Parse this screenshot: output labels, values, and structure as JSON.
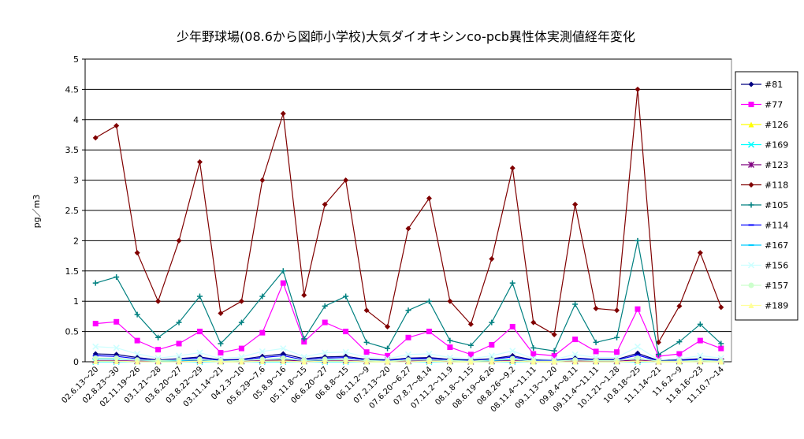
{
  "chart_data": {
    "type": "line",
    "title": "少年野球場(08.6から図師小学校)大気ダイオキシンco-pcb異性体実測値経年変化",
    "y_label": "pg／m3",
    "categories": [
      "02.6.13～20",
      "02.8.23～30",
      "02.11.19～26",
      "03.1.21～28",
      "03.6.20～27",
      "03.8.22～29",
      "03.11.14～21",
      "04.2.3～10",
      "05.6.29～7.6",
      "05.8.9～16",
      "05.11.8～15",
      "06.6.20～27",
      "06.8.8～15",
      "06.11.2～9",
      "07.2.13～20",
      "07.6.20～6.27",
      "07.8.7～8.14",
      "07.11.2～11.9",
      "08.1.8～1.15",
      "08.6.19～6.26",
      "08.8.26～9.2",
      "08.11.4～11.11",
      "09.1.13～1.20",
      "09.8.4～8.11",
      "09.11.4～11.11",
      "10.1.21～1.28",
      "10.8.18～25",
      "11.1.14～21",
      "11.6.2～9",
      "11.8.16～23",
      "11.10.7～14"
    ],
    "ylim": [
      0,
      5
    ],
    "yticks": [
      0,
      0.5,
      1,
      1.5,
      2,
      2.5,
      3,
      3.5,
      4,
      4.5,
      5
    ],
    "grid": true,
    "series": [
      {
        "name": "#81",
        "color": "#000080",
        "marker": "diamond",
        "values": [
          0.13,
          0.12,
          0.07,
          0.03,
          0.05,
          0.08,
          0.03,
          0.04,
          0.09,
          0.13,
          0.05,
          0.08,
          0.09,
          0.04,
          0.03,
          0.06,
          0.07,
          0.04,
          0.03,
          0.05,
          0.1,
          0.03,
          0.02,
          0.06,
          0.04,
          0.04,
          0.14,
          0.02,
          0.03,
          0.05,
          0.03
        ]
      },
      {
        "name": "#77",
        "color": "#ff00ff",
        "marker": "square",
        "values": [
          0.63,
          0.66,
          0.35,
          0.2,
          0.3,
          0.5,
          0.15,
          0.22,
          0.48,
          1.3,
          0.33,
          0.65,
          0.5,
          0.16,
          0.1,
          0.4,
          0.5,
          0.24,
          0.12,
          0.28,
          0.58,
          0.13,
          0.1,
          0.37,
          0.17,
          0.16,
          0.87,
          0.09,
          0.13,
          0.35,
          0.22
        ]
      },
      {
        "name": "#126",
        "color": "#ffff00",
        "marker": "triangle",
        "values": [
          0.01,
          0.01,
          0.01,
          0.0,
          0.01,
          0.01,
          0.0,
          0.0,
          0.01,
          0.02,
          0.0,
          0.01,
          0.01,
          0.0,
          0.0,
          0.01,
          0.01,
          0.0,
          0.0,
          0.01,
          0.01,
          0.0,
          0.0,
          0.01,
          0.0,
          0.0,
          0.02,
          0.0,
          0.0,
          0.01,
          0.0
        ]
      },
      {
        "name": "#169",
        "color": "#00ffff",
        "marker": "x",
        "values": [
          0.0,
          0.0,
          0.0,
          0.0,
          0.0,
          0.0,
          0.0,
          0.0,
          0.0,
          0.0,
          0.0,
          0.0,
          0.0,
          0.0,
          0.0,
          0.0,
          0.0,
          0.0,
          0.0,
          0.0,
          0.0,
          0.0,
          0.0,
          0.0,
          0.0,
          0.0,
          0.0,
          0.0,
          0.0,
          0.0,
          0.0
        ]
      },
      {
        "name": "#123",
        "color": "#800080",
        "marker": "star",
        "values": [
          0.02,
          0.02,
          0.01,
          0.01,
          0.01,
          0.02,
          0.01,
          0.01,
          0.02,
          0.03,
          0.01,
          0.02,
          0.02,
          0.01,
          0.0,
          0.01,
          0.02,
          0.01,
          0.0,
          0.01,
          0.02,
          0.01,
          0.0,
          0.01,
          0.01,
          0.01,
          0.03,
          0.0,
          0.01,
          0.01,
          0.01
        ]
      },
      {
        "name": "#118",
        "color": "#800000",
        "marker": "diamond",
        "values": [
          3.7,
          3.9,
          1.8,
          1.0,
          2.0,
          3.3,
          0.8,
          1.0,
          3.0,
          4.1,
          1.1,
          2.6,
          3.0,
          0.85,
          0.58,
          2.2,
          2.7,
          1.0,
          0.62,
          1.7,
          3.2,
          0.65,
          0.45,
          2.6,
          0.88,
          0.85,
          4.5,
          0.32,
          0.92,
          1.8,
          0.9
        ]
      },
      {
        "name": "#105",
        "color": "#008080",
        "marker": "plus",
        "values": [
          1.3,
          1.4,
          0.78,
          0.4,
          0.65,
          1.08,
          0.3,
          0.65,
          1.08,
          1.5,
          0.38,
          0.92,
          1.08,
          0.32,
          0.22,
          0.85,
          1.0,
          0.35,
          0.27,
          0.65,
          1.3,
          0.23,
          0.18,
          0.95,
          0.32,
          0.4,
          2.0,
          0.12,
          0.33,
          0.62,
          0.3
        ]
      },
      {
        "name": "#114",
        "color": "#0000ff",
        "marker": "dash",
        "values": [
          0.1,
          0.09,
          0.05,
          0.02,
          0.04,
          0.06,
          0.02,
          0.03,
          0.07,
          0.1,
          0.03,
          0.06,
          0.07,
          0.03,
          0.02,
          0.05,
          0.05,
          0.03,
          0.02,
          0.04,
          0.08,
          0.02,
          0.02,
          0.05,
          0.03,
          0.03,
          0.11,
          0.01,
          0.02,
          0.04,
          0.02
        ]
      },
      {
        "name": "#167",
        "color": "#00ccff",
        "marker": "dash",
        "values": [
          0.05,
          0.05,
          0.03,
          0.01,
          0.02,
          0.03,
          0.01,
          0.02,
          0.04,
          0.05,
          0.02,
          0.03,
          0.04,
          0.02,
          0.01,
          0.03,
          0.03,
          0.02,
          0.01,
          0.02,
          0.04,
          0.01,
          0.01,
          0.03,
          0.02,
          0.02,
          0.06,
          0.01,
          0.01,
          0.02,
          0.01
        ]
      },
      {
        "name": "#156",
        "color": "#ccffff",
        "marker": "x",
        "values": [
          0.25,
          0.23,
          0.13,
          0.06,
          0.1,
          0.15,
          0.05,
          0.08,
          0.17,
          0.22,
          0.08,
          0.15,
          0.16,
          0.07,
          0.05,
          0.12,
          0.13,
          0.07,
          0.05,
          0.1,
          0.18,
          0.05,
          0.04,
          0.12,
          0.07,
          0.07,
          0.25,
          0.03,
          0.05,
          0.1,
          0.06
        ]
      },
      {
        "name": "#157",
        "color": "#ccffcc",
        "marker": "circle",
        "values": [
          0.06,
          0.06,
          0.03,
          0.02,
          0.03,
          0.04,
          0.01,
          0.02,
          0.04,
          0.06,
          0.02,
          0.04,
          0.04,
          0.02,
          0.01,
          0.03,
          0.03,
          0.02,
          0.01,
          0.03,
          0.05,
          0.01,
          0.01,
          0.03,
          0.02,
          0.02,
          0.06,
          0.01,
          0.01,
          0.02,
          0.01
        ]
      },
      {
        "name": "#189",
        "color": "#ffff99",
        "marker": "triangle",
        "values": [
          0.01,
          0.01,
          0.0,
          0.0,
          0.0,
          0.01,
          0.0,
          0.0,
          0.01,
          0.01,
          0.0,
          0.01,
          0.01,
          0.0,
          0.0,
          0.0,
          0.01,
          0.0,
          0.0,
          0.0,
          0.01,
          0.0,
          0.0,
          0.0,
          0.0,
          0.0,
          0.01,
          0.0,
          0.0,
          0.0,
          0.0
        ]
      }
    ]
  }
}
